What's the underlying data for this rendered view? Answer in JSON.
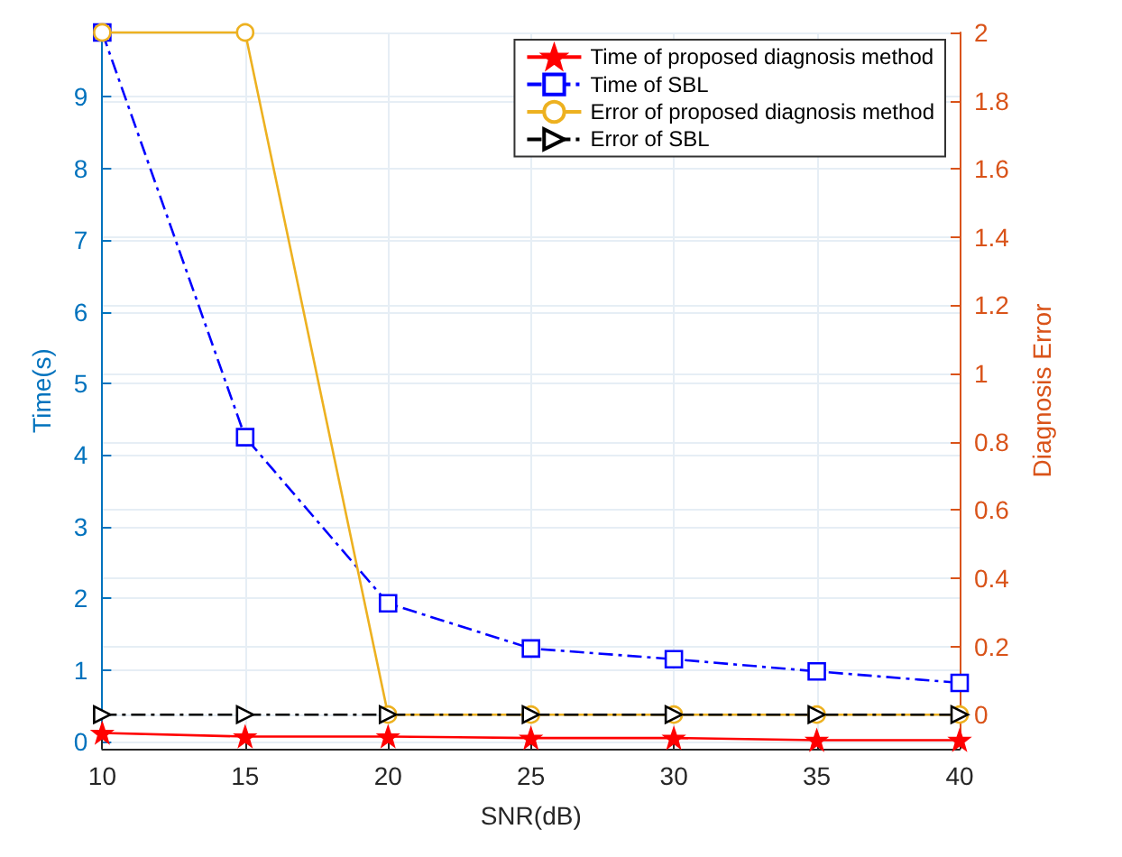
{
  "chart_data": {
    "type": "line",
    "xlabel": "SNR(dB)",
    "ylabel": "Time(s)",
    "y2label": "Diagnosis Error",
    "x": [
      10,
      15,
      20,
      25,
      30,
      35,
      40
    ],
    "xlim": [
      10,
      40
    ],
    "xticks": [
      10,
      15,
      20,
      25,
      30,
      35,
      40
    ],
    "ylim": [
      -0.1,
      9.9
    ],
    "yticks": [
      0,
      1,
      2,
      3,
      4,
      5,
      6,
      7,
      8,
      9
    ],
    "y2lim": [
      -0.1,
      2
    ],
    "y2ticks": [
      0,
      0.2,
      0.4,
      0.6,
      0.8,
      1,
      1.2,
      1.4,
      1.6,
      1.8,
      2
    ],
    "grid": true,
    "legend": "top right",
    "series": [
      {
        "name": "Time of proposed diagnosis method",
        "color": "#ff0000",
        "values": [
          0.12,
          0.07,
          0.07,
          0.05,
          0.05,
          0.02,
          0.02
        ],
        "marker": "star",
        "line_style": "solid"
      },
      {
        "name": "Time of SBL",
        "color": "#0000ff",
        "values": [
          9.9,
          4.25,
          1.93,
          1.3,
          1.15,
          0.98,
          0.82
        ],
        "marker": "square",
        "line_style": "dashed"
      },
      {
        "name": "Error of proposed diagnosis method",
        "color": "#edb120",
        "values": [
          2,
          2,
          0,
          0,
          0,
          0,
          0
        ],
        "marker": "circle",
        "line_style": "solid",
        "axis": "y2"
      },
      {
        "name": "Error of SBL",
        "color": "#000000",
        "values": [
          0,
          0,
          0,
          0,
          0,
          0,
          0
        ],
        "marker": "triangle",
        "line_style": "dashed",
        "axis": "y2"
      }
    ]
  }
}
